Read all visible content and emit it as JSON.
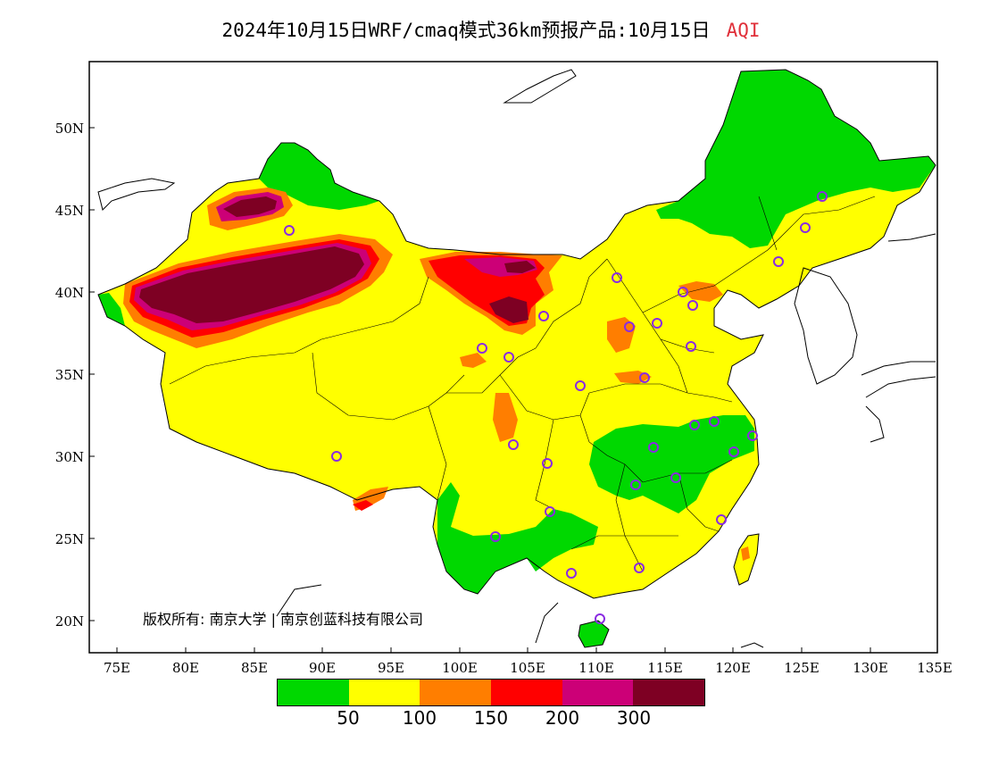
{
  "title": {
    "main": "2024年10月15日WRF/cmaq模式36km预报产品:10月15日",
    "variable": "AQI"
  },
  "axes": {
    "y_ticks": [
      "50N",
      "45N",
      "40N",
      "35N",
      "30N",
      "25N",
      "20N"
    ],
    "x_ticks": [
      "75E",
      "80E",
      "85E",
      "90E",
      "95E",
      "100E",
      "105E",
      "110E",
      "115E",
      "120E",
      "125E",
      "130E",
      "135E"
    ]
  },
  "colorbar": {
    "colors": [
      "#00d800",
      "#ffff00",
      "#ff7e00",
      "#ff0000",
      "#cc0077",
      "#7e0023"
    ],
    "labels": [
      "50",
      "100",
      "150",
      "200",
      "300"
    ]
  },
  "copyright": "版权所有: 南京大学 | 南京创蓝科技有限公司",
  "stations_marker_color": "#8a2be2"
}
